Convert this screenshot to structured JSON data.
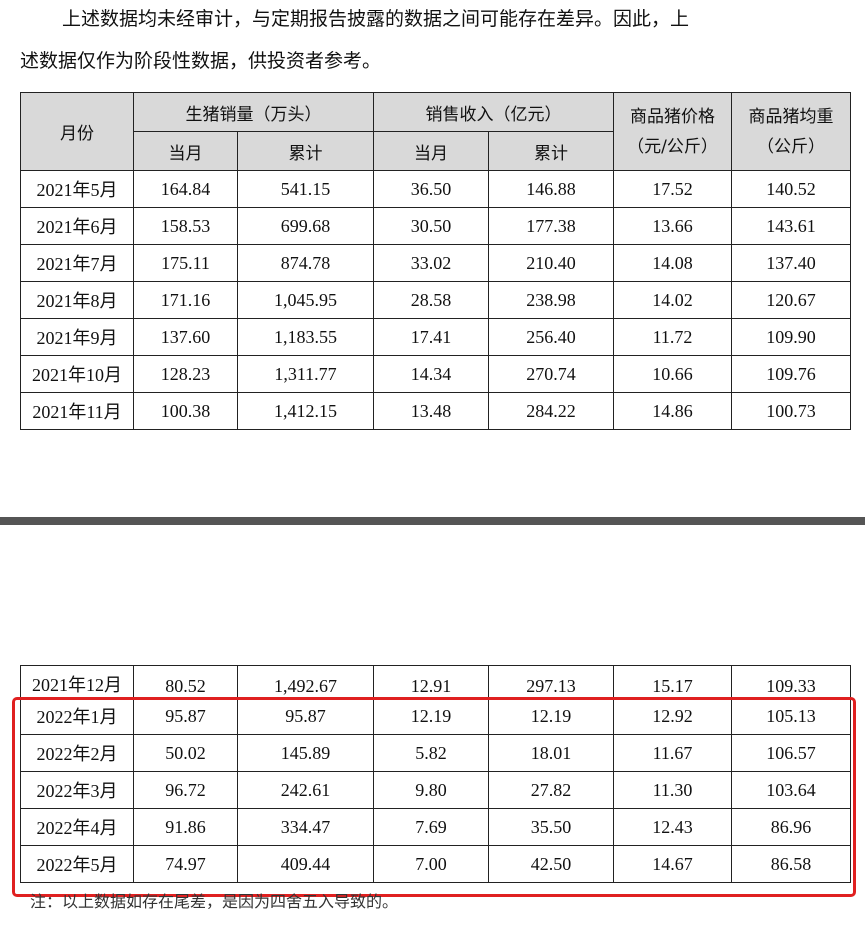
{
  "intro": {
    "line1": "上述数据均未经审计，与定期报告披露的数据之间可能存在差异。因此，上",
    "line2": "述数据仅作为阶段性数据，供投资者参考。"
  },
  "table": {
    "headers": {
      "month": "月份",
      "sales_volume": "生猪销量（万头）",
      "revenue": "销售收入（亿元）",
      "price": "商品猪价格（元/公斤）",
      "weight": "商品猪均重（公斤）",
      "current_month": "当月",
      "cumulative": "累计"
    },
    "rows_top": [
      [
        "2021年5月",
        "164.84",
        "541.15",
        "36.50",
        "146.88",
        "17.52",
        "140.52"
      ],
      [
        "2021年6月",
        "158.53",
        "699.68",
        "30.50",
        "177.38",
        "13.66",
        "143.61"
      ],
      [
        "2021年7月",
        "175.11",
        "874.78",
        "33.02",
        "210.40",
        "14.08",
        "137.40"
      ],
      [
        "2021年8月",
        "171.16",
        "1,045.95",
        "28.58",
        "238.98",
        "14.02",
        "120.67"
      ],
      [
        "2021年9月",
        "137.60",
        "1,183.55",
        "17.41",
        "256.40",
        "11.72",
        "109.90"
      ],
      [
        "2021年10月",
        "128.23",
        "1,311.77",
        "14.34",
        "270.74",
        "10.66",
        "109.76"
      ],
      [
        "2021年11月",
        "100.38",
        "1,412.15",
        "13.48",
        "284.22",
        "14.86",
        "100.73"
      ]
    ],
    "rows_bottom": [
      [
        "2021年12月",
        "80.52",
        "1,492.67",
        "12.91",
        "297.13",
        "15.17",
        "109.33"
      ],
      [
        "2022年1月",
        "95.87",
        "95.87",
        "12.19",
        "12.19",
        "12.92",
        "105.13"
      ],
      [
        "2022年2月",
        "50.02",
        "145.89",
        "5.82",
        "18.01",
        "11.67",
        "106.57"
      ],
      [
        "2022年3月",
        "96.72",
        "242.61",
        "9.80",
        "27.82",
        "11.30",
        "103.64"
      ],
      [
        "2022年4月",
        "91.86",
        "334.47",
        "7.69",
        "35.50",
        "12.43",
        "86.96"
      ],
      [
        "2022年5月",
        "74.97",
        "409.44",
        "7.00",
        "42.50",
        "14.67",
        "86.58"
      ]
    ]
  },
  "note": "注：以上数据如存在尾差，是因为四舍五入导致的。",
  "colors": {
    "highlight_box": "#e02020",
    "header_bg": "#d9d9d9",
    "separator": "#555555"
  }
}
